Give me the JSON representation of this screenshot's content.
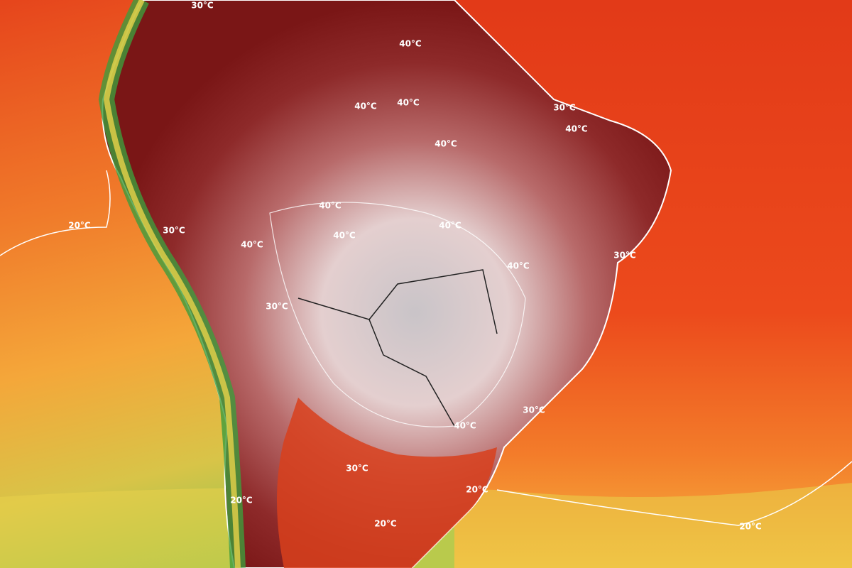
{
  "contour_labels": [
    "30°C",
    "40°C",
    "30°C",
    "40°C",
    "40°C",
    "40°C",
    "40°C",
    "20°C",
    "40°C",
    "30°C",
    "40°C",
    "40°C",
    "40°C",
    "30°C",
    "30°C",
    "40°C",
    "30°C",
    "40°C",
    "30°C",
    "20°C",
    "20°C",
    "20°C",
    "20°C"
  ]
}
